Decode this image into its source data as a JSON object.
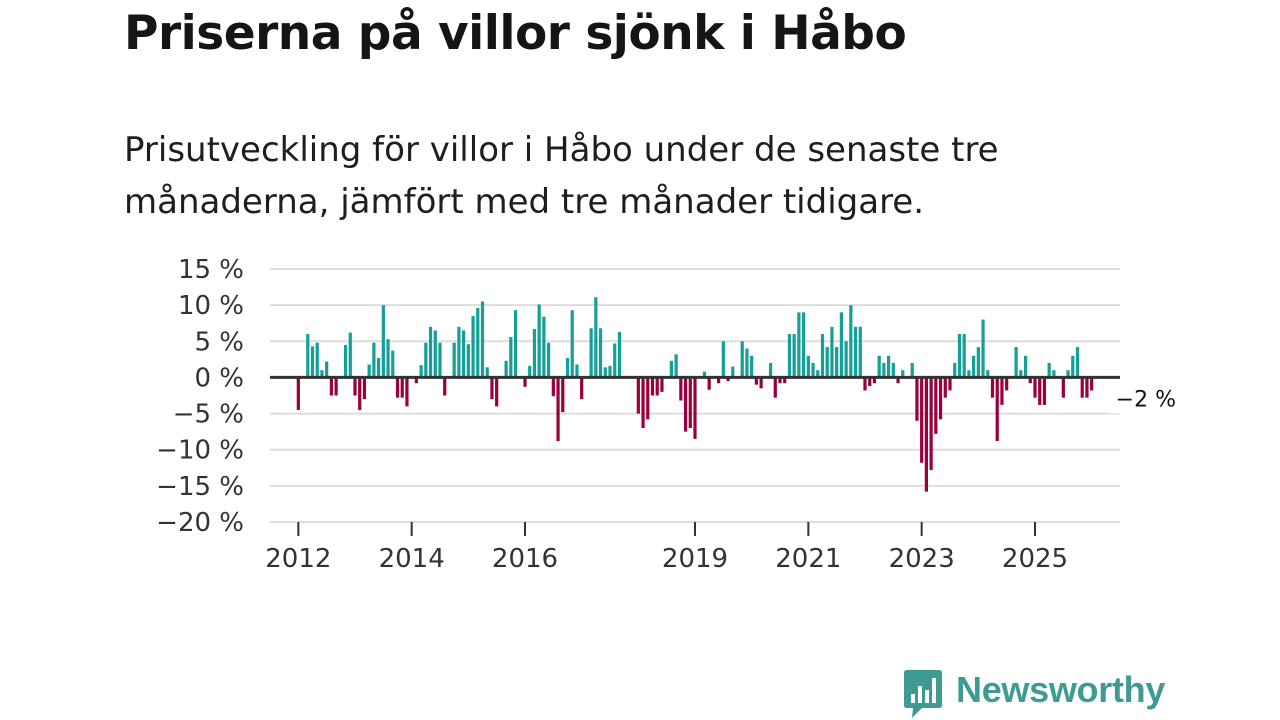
{
  "header": {
    "title": "Priserna på villor sjönk i Håbo",
    "subtitle": "Prisutveckling för villor i Håbo under de senaste tre månaderna, jämfört med tre månader tidigare."
  },
  "brand": {
    "name": "Newsworthy",
    "color": "#3f9a94"
  },
  "chart_data": {
    "type": "bar",
    "title": "Priserna på villor sjönk i Håbo",
    "xlabel": "",
    "ylabel": "",
    "ylim": [
      -20,
      15
    ],
    "y_ticks": [
      15,
      10,
      5,
      0,
      -5,
      -10,
      -15,
      -20
    ],
    "y_tick_labels": [
      "15 %",
      "10 %",
      "5 %",
      "0 %",
      "−5 %",
      "−10 %",
      "−15 %",
      "−20 %"
    ],
    "x_ticks": [
      2012,
      2014,
      2016,
      2019,
      2021,
      2023,
      2025
    ],
    "x_tick_labels": [
      "2012",
      "2014",
      "2016",
      "2019",
      "2021",
      "2023",
      "2025"
    ],
    "x_range": [
      2011.5,
      2026.5
    ],
    "start": {
      "year": 2012,
      "month": 1
    },
    "grid": true,
    "colors": {
      "positive": "#149f97",
      "negative": "#99003d",
      "grid": "#dddddd",
      "zero": "#333333"
    },
    "end_label": "−2 %",
    "values": [
      -4.5,
      0,
      6,
      4.3,
      4.8,
      1,
      2.2,
      -2.5,
      -2.5,
      0,
      4.5,
      6.2,
      -2.5,
      -4.5,
      -3,
      1.8,
      4.8,
      2.7,
      10,
      5.3,
      3.7,
      -2.8,
      -2.8,
      -4,
      0,
      -0.8,
      1.7,
      4.8,
      7,
      6.5,
      4.8,
      -2.5,
      0,
      4.8,
      7,
      6.5,
      4.6,
      8.5,
      9.6,
      10.5,
      1.4,
      -3,
      -4,
      0,
      2.3,
      5.6,
      9.3,
      0,
      -1.3,
      1.6,
      6.7,
      10.1,
      8.4,
      4.8,
      -2.6,
      -8.8,
      -4.8,
      2.7,
      9.3,
      1.8,
      -3,
      0,
      6.8,
      11.1,
      6.8,
      1.4,
      1.6,
      4.7,
      6.3,
      0,
      0,
      0,
      -5,
      -7,
      -5.8,
      -2.5,
      -2.5,
      -2,
      0,
      2.3,
      3.2,
      -3.2,
      -7.5,
      -7,
      -8.5,
      0,
      0.8,
      -1.7,
      0,
      -0.8,
      5,
      -0.5,
      1.5,
      0,
      5,
      4,
      3,
      -1,
      -1.5,
      0,
      2,
      -2.8,
      -0.8,
      -0.8,
      6,
      6,
      9,
      9,
      3,
      2,
      1,
      6,
      4.2,
      7,
      4.2,
      9,
      5,
      10,
      7,
      7,
      -1.8,
      -1.2,
      -0.8,
      3,
      2,
      3,
      2,
      -0.8,
      1,
      0,
      2,
      -6,
      -11.8,
      -15.8,
      -12.8,
      -7.8,
      -5.8,
      -2.8,
      -1.8,
      2,
      6,
      6,
      1,
      3,
      4.2,
      8,
      1,
      -2.8,
      -8.8,
      -3.8,
      -1.8,
      0,
      4.2,
      1,
      3,
      -0.8,
      -2.8,
      -3.8,
      -3.8,
      2,
      1,
      0,
      -2.8,
      1,
      3,
      4.2,
      -2.8,
      -2.8,
      -1.8
    ]
  }
}
